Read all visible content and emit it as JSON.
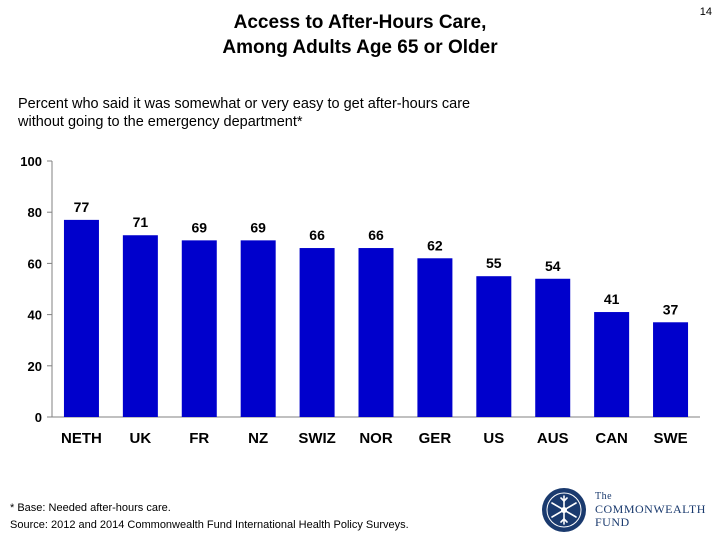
{
  "page": {
    "title_line1": "Access to After-Hours Care,",
    "title_line2": "Among Adults Age 65 or Older",
    "page_number": "14",
    "subtitle_line1": "Percent who said it was somewhat or very easy to get after-hours care",
    "subtitle_line2": "without going to the emergency department*",
    "footnote_line1": "* Base: Needed after-hours care.",
    "footnote_line2": "Source: 2012 and 2014 Commonwealth Fund International Health Policy Surveys.",
    "logo": {
      "line1": "The",
      "line2": "COMMONWEALTH",
      "line3": "FUND"
    }
  },
  "colors": {
    "bar": "#0000cc",
    "axis": "#808080",
    "logo": "#1a3a6e"
  },
  "chart_data": {
    "type": "bar",
    "title": "Access to After-Hours Care, Among Adults Age 65 or Older",
    "xlabel": "",
    "ylabel": "",
    "ylim": [
      0,
      100
    ],
    "yticks": [
      0,
      20,
      40,
      60,
      80,
      100
    ],
    "grid": false,
    "categories": [
      "NETH",
      "UK",
      "FR",
      "NZ",
      "SWIZ",
      "NOR",
      "GER",
      "US",
      "AUS",
      "CAN",
      "SWE"
    ],
    "values": [
      77,
      71,
      69,
      69,
      66,
      66,
      62,
      55,
      54,
      41,
      37
    ]
  }
}
